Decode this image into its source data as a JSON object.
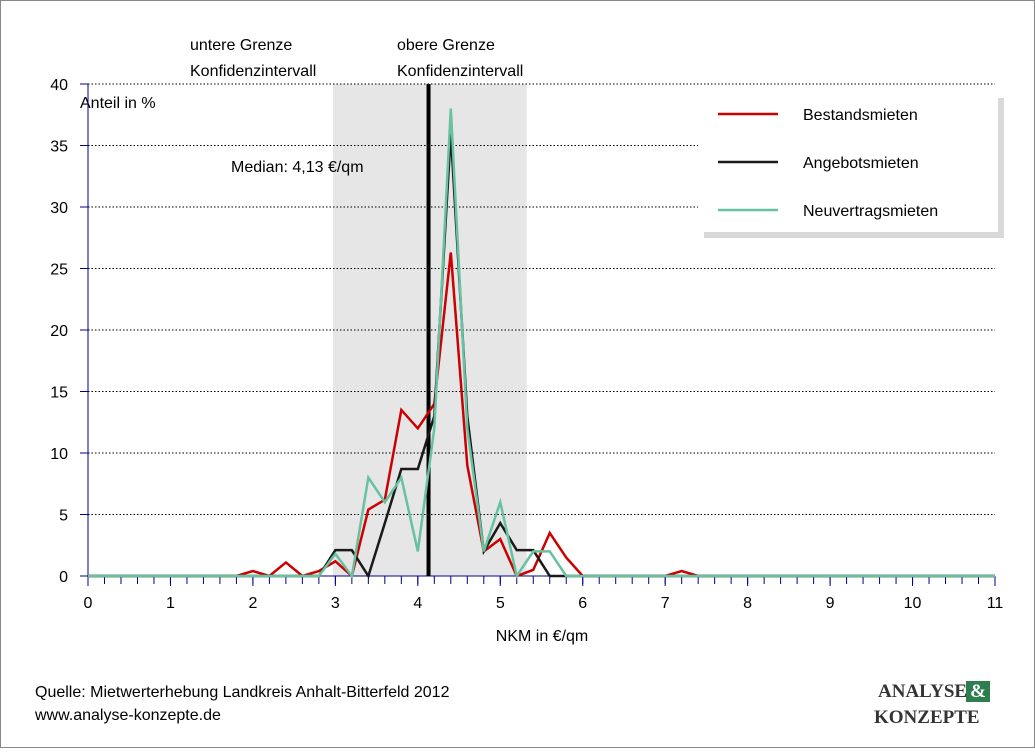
{
  "chart_data": {
    "type": "line",
    "ylabel": "Anteil in %",
    "xlabel": "NKM in €/qm",
    "x": [
      0,
      0.2,
      0.4,
      0.6,
      0.8,
      1,
      1.2,
      1.4,
      1.6,
      1.8,
      2,
      2.2,
      2.4,
      2.6,
      2.8,
      3,
      3.2,
      3.4,
      3.6,
      3.8,
      4,
      4.2,
      4.4,
      4.6,
      4.8,
      5,
      5.2,
      5.4,
      5.6,
      5.8,
      6,
      6.2,
      6.4,
      6.6,
      6.8,
      7,
      7.2,
      7.4,
      7.6,
      7.8,
      8,
      8.2,
      8.4,
      8.6,
      8.8,
      9,
      9.2,
      9.4,
      9.6,
      9.8,
      10,
      10.2,
      10.4,
      10.6,
      10.8,
      11
    ],
    "series": [
      {
        "name": "Bestandsmieten",
        "color": "#cc0000",
        "values": [
          0,
          0,
          0,
          0,
          0,
          0,
          0,
          0,
          0,
          0,
          0.4,
          0,
          1.1,
          0,
          0.4,
          1.2,
          0,
          5.4,
          6.2,
          13.5,
          12,
          14,
          26.3,
          9,
          2,
          3,
          0,
          0.5,
          3.5,
          1.5,
          0,
          0,
          0,
          0,
          0,
          0,
          0.4,
          0,
          0,
          0,
          0,
          0,
          0,
          0,
          0,
          0,
          0,
          0,
          0,
          0,
          0,
          0,
          0,
          0,
          0,
          0
        ]
      },
      {
        "name": "Angebotsmieten",
        "color": "#1a1a1a",
        "values": [
          0,
          0,
          0,
          0,
          0,
          0,
          0,
          0,
          0,
          0,
          0,
          0,
          0,
          0,
          0,
          2.1,
          2.1,
          0,
          4.3,
          8.7,
          8.7,
          13,
          36,
          13,
          2,
          4.3,
          2.1,
          2.1,
          0,
          0,
          0,
          0,
          0,
          0,
          0,
          0,
          0,
          0,
          0,
          0,
          0,
          0,
          0,
          0,
          0,
          0,
          0,
          0,
          0,
          0,
          0,
          0,
          0,
          0,
          0,
          0
        ]
      },
      {
        "name": "Neuvertragsmieten",
        "color": "#66c2a0",
        "values": [
          0,
          0,
          0,
          0,
          0,
          0,
          0,
          0,
          0,
          0,
          0,
          0,
          0,
          0,
          0,
          1.8,
          0,
          8,
          6,
          8,
          2,
          12,
          38,
          12,
          2,
          6,
          0,
          2,
          2,
          0,
          0,
          0,
          0,
          0,
          0,
          0,
          0,
          0,
          0,
          0,
          0,
          0,
          0,
          0,
          0,
          0,
          0,
          0,
          0,
          0,
          0,
          0,
          0,
          0,
          0,
          0
        ]
      }
    ],
    "xlim": [
      0,
      11
    ],
    "xticks": [
      0,
      1,
      2,
      3,
      4,
      5,
      6,
      7,
      8,
      9,
      10,
      11
    ],
    "ylim": [
      0,
      40
    ],
    "yticks": [
      0,
      5,
      10,
      15,
      20,
      25,
      30,
      35,
      40
    ],
    "grid": true,
    "legend": "upper right",
    "confidence_interval": {
      "lower": 2.97,
      "upper": 5.32,
      "lower_label": [
        "untere Grenze",
        "Konfidenzintervall"
      ],
      "upper_label": [
        "obere Grenze",
        "Konfidenzintervall"
      ]
    },
    "median": {
      "value": 4.13,
      "label": "Median: 4,13 €/qm"
    }
  },
  "footer": {
    "source": "Quelle: Mietwerterhebung Landkreis Anhalt-Bitterfeld 2012",
    "url": "www.analyse-konzepte.de",
    "logo": [
      "ANALYSE",
      "&",
      "KONZEPTE"
    ]
  }
}
